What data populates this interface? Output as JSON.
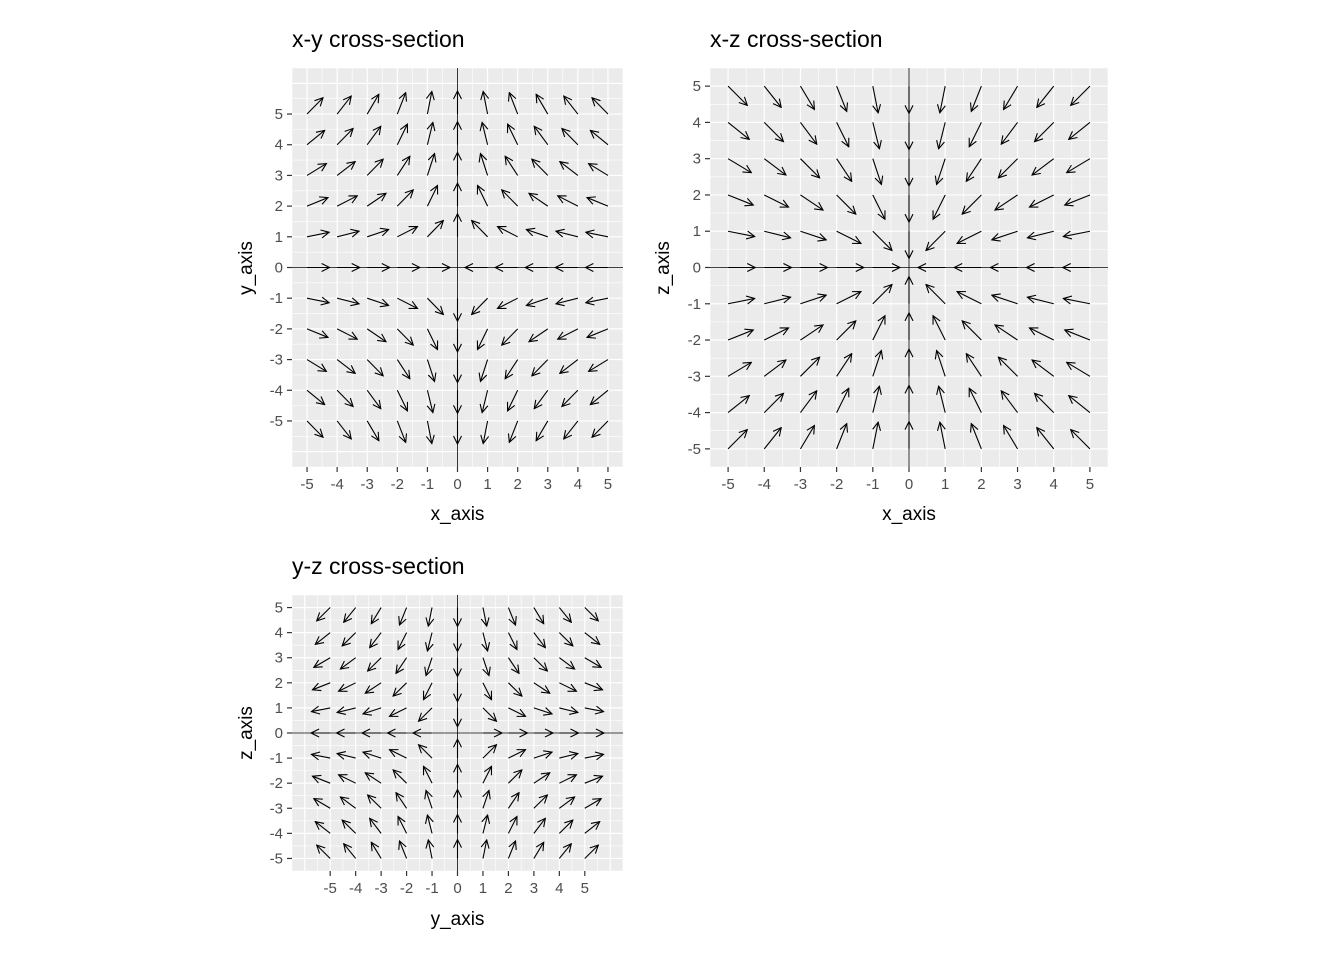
{
  "chart_data": [
    {
      "type": "vector-field",
      "title": "x-y cross-section",
      "xlabel": "x_axis",
      "ylabel": "y_axis",
      "xlim": [
        -5.5,
        5.5
      ],
      "ylim": [
        -6.5,
        6.5
      ],
      "x_ticks": [
        "-5",
        "-4",
        "-3",
        "-2",
        "-1",
        "0",
        "1",
        "2",
        "3",
        "4",
        "5"
      ],
      "y_ticks": [
        "-5",
        "-4",
        "-3",
        "-2",
        "-1",
        "0",
        "1",
        "2",
        "3",
        "4",
        "5"
      ],
      "grid": true,
      "field": "(-x, y) direction, unit length, sampled on grid x∈{-5..5}, y∈{-5..5} excluding origin",
      "colors": {
        "panel": "#ebebeb",
        "grid": "#ffffff",
        "arrow": "#000000",
        "tick": "#4d4d4d"
      }
    },
    {
      "type": "vector-field",
      "title": "x-z cross-section",
      "xlabel": "x_axis",
      "ylabel": "z_axis",
      "xlim": [
        -5.5,
        5.5
      ],
      "ylim": [
        -5.5,
        5.5
      ],
      "x_ticks": [
        "-5",
        "-4",
        "-3",
        "-2",
        "-1",
        "0",
        "1",
        "2",
        "3",
        "4",
        "5"
      ],
      "y_ticks": [
        "-5",
        "-4",
        "-3",
        "-2",
        "-1",
        "0",
        "1",
        "2",
        "3",
        "4",
        "5"
      ],
      "grid": true,
      "field": "(-x, -z) direction, unit length, sampled on grid x∈{-5..5}, z∈{-5..5} excluding origin",
      "colors": {
        "panel": "#ebebeb",
        "grid": "#ffffff",
        "arrow": "#000000",
        "tick": "#4d4d4d"
      }
    },
    {
      "type": "vector-field",
      "title": "y-z cross-section",
      "xlabel": "y_axis",
      "ylabel": "z_axis",
      "xlim": [
        -6.5,
        6.5
      ],
      "ylim": [
        -5.5,
        5.5
      ],
      "x_ticks": [
        "-5",
        "-4",
        "-3",
        "-2",
        "-1",
        "0",
        "1",
        "2",
        "3",
        "4",
        "5"
      ],
      "y_ticks": [
        "-5",
        "-4",
        "-3",
        "-2",
        "-1",
        "0",
        "1",
        "2",
        "3",
        "4",
        "5"
      ],
      "grid": true,
      "field": "(y, -z) direction, unit length, sampled on grid y∈{-5..5}, z∈{-5..5} excluding origin",
      "colors": {
        "panel": "#ebebeb",
        "grid": "#ffffff",
        "arrow": "#000000",
        "tick": "#4d4d4d"
      }
    }
  ]
}
